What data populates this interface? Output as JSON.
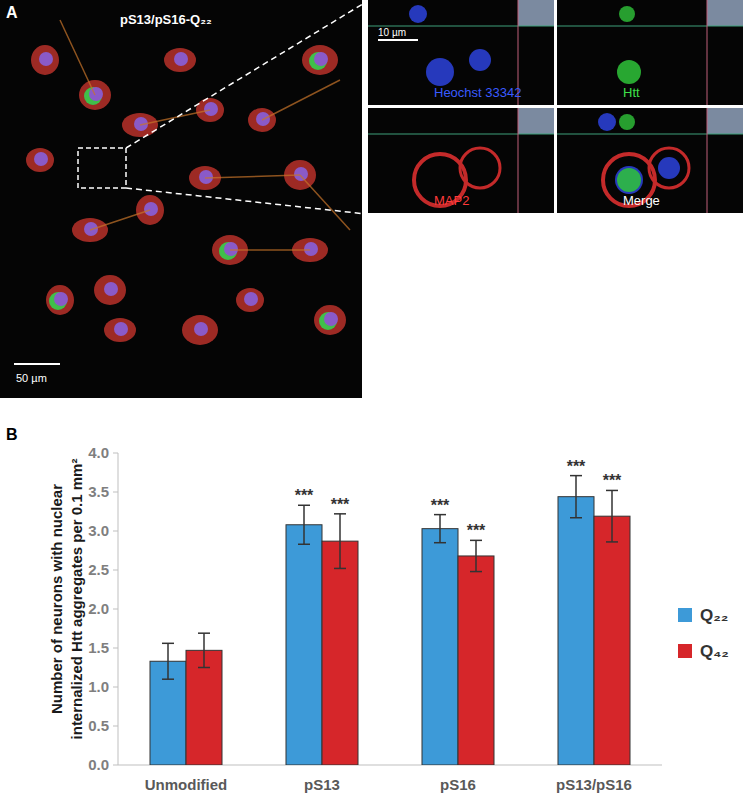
{
  "panel_a": {
    "label": "A",
    "image_title": "pS13/pS16-Q₂₂",
    "scale_bar": "50 µm",
    "inset_scale_bar": "10 µm",
    "channels": [
      "Heochst 33342",
      "Htt",
      "MAP2",
      "Merge"
    ]
  },
  "chart_data": {
    "type": "bar",
    "label": "B",
    "y_label": [
      "Number of neurons with nuclear",
      "internalized Htt aggregates per 0.1 mm²"
    ],
    "categories": [
      "Unmodified",
      "pS13",
      "pS16",
      "pS13/pS16"
    ],
    "series": [
      {
        "name": "Q₂₂",
        "color": "#3d9ad8",
        "values": [
          1.33,
          3.08,
          3.03,
          3.44
        ],
        "errors": [
          0.23,
          0.25,
          0.18,
          0.27
        ],
        "significance": [
          null,
          "***",
          "***",
          "***"
        ]
      },
      {
        "name": "Q₄₂",
        "color": "#d6262a",
        "values": [
          1.47,
          2.87,
          2.68,
          3.19
        ],
        "errors": [
          0.22,
          0.35,
          0.2,
          0.33
        ],
        "significance": [
          null,
          "***",
          "***",
          "***"
        ]
      }
    ],
    "ylim": [
      0,
      4
    ],
    "yticks": [
      {
        "value": 0,
        "label": "0.0"
      },
      0.5,
      {
        "value": 1,
        "label": "1.0"
      },
      1.5,
      {
        "value": 2,
        "label": "2.0"
      },
      2.5,
      {
        "value": 3,
        "label": "3.0"
      },
      3.5,
      {
        "value": 4,
        "label": "4.0"
      }
    ],
    "grid": false,
    "legend": "right"
  }
}
